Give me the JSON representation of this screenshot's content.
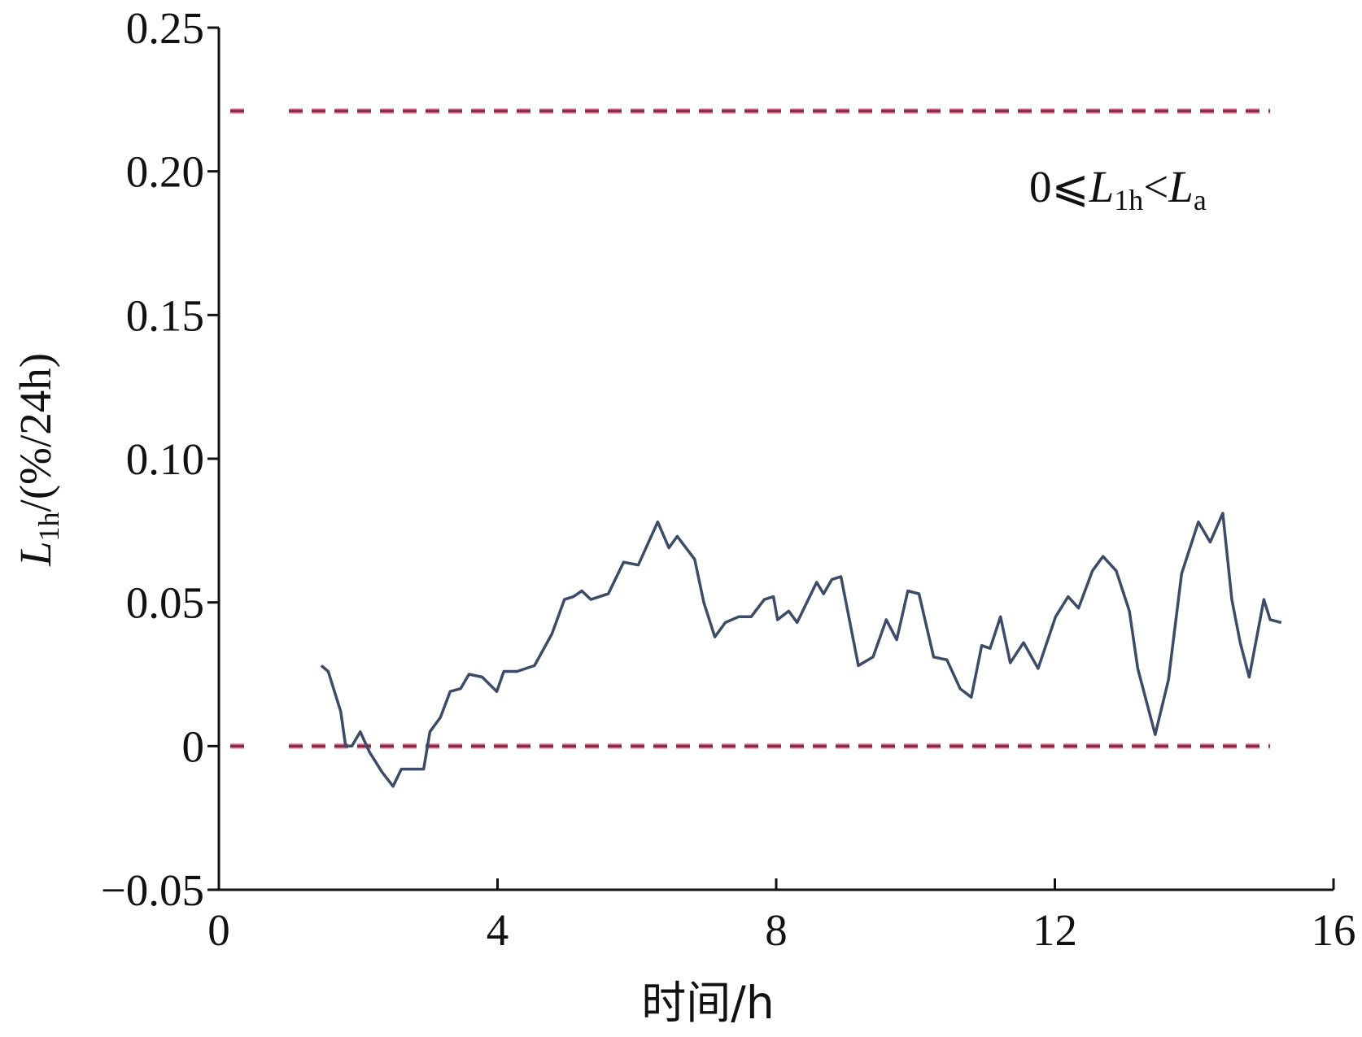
{
  "chart_data": {
    "type": "line",
    "annotation": {
      "parts": [
        "0⩽",
        "L",
        "1h",
        "<",
        "L",
        "a"
      ]
    },
    "xlabel": "时间/h",
    "ylabel": {
      "parts": [
        "L",
        "1h",
        "/(%/24h)"
      ]
    },
    "xlim": [
      0,
      16
    ],
    "xticks": [
      0,
      4,
      8,
      12,
      16
    ],
    "ylim": [
      -0.05,
      0.25
    ],
    "yticks": [
      {
        "value": -0.05,
        "label": "−0.05"
      },
      0,
      0.05,
      {
        "value": 0.1,
        "label": "0.10"
      },
      0.15,
      {
        "value": 0.2,
        "label": "0.20"
      },
      0.25
    ],
    "reference_lines": [
      {
        "y": 0.221,
        "color": "#d9436a"
      },
      {
        "y": 0,
        "color": "#d9436a"
      }
    ],
    "series": [
      {
        "color": "#3b4b68",
        "x": [
          1.47,
          1.57,
          1.75,
          1.82,
          1.91,
          2.03,
          2.16,
          2.34,
          2.5,
          2.62,
          2.78,
          2.94,
          3.03,
          3.18,
          3.32,
          3.47,
          3.59,
          3.78,
          3.99,
          4.09,
          4.28,
          4.53,
          4.78,
          4.96,
          5.09,
          5.21,
          5.34,
          5.59,
          5.81,
          6.02,
          6.3,
          6.46,
          6.58,
          6.83,
          6.96,
          7.12,
          7.27,
          7.46,
          7.64,
          7.83,
          7.96,
          8.02,
          8.18,
          8.3,
          8.58,
          8.68,
          8.8,
          8.93,
          9.18,
          9.39,
          9.58,
          9.73,
          9.89,
          10.05,
          10.26,
          10.45,
          10.64,
          10.8,
          10.95,
          11.07,
          11.22,
          11.36,
          11.55,
          11.76,
          12.01,
          12.19,
          12.34,
          12.54,
          12.69,
          12.88,
          13.07,
          13.19,
          13.44,
          13.63,
          13.82,
          14.06,
          14.23,
          14.41,
          14.54,
          14.66,
          14.79,
          15.0,
          15.09,
          15.25
        ],
        "values": [
          0.028,
          0.026,
          0.012,
          0.0,
          0.0,
          0.005,
          -0.002,
          -0.009,
          -0.014,
          -0.008,
          -0.008,
          -0.008,
          0.005,
          0.01,
          0.019,
          0.02,
          0.025,
          0.024,
          0.019,
          0.026,
          0.026,
          0.028,
          0.039,
          0.051,
          0.052,
          0.054,
          0.051,
          0.053,
          0.064,
          0.063,
          0.078,
          0.069,
          0.073,
          0.065,
          0.05,
          0.038,
          0.043,
          0.045,
          0.045,
          0.051,
          0.052,
          0.044,
          0.047,
          0.043,
          0.057,
          0.053,
          0.058,
          0.059,
          0.028,
          0.031,
          0.044,
          0.037,
          0.054,
          0.053,
          0.031,
          0.03,
          0.02,
          0.017,
          0.035,
          0.034,
          0.045,
          0.029,
          0.036,
          0.027,
          0.045,
          0.052,
          0.048,
          0.061,
          0.066,
          0.061,
          0.047,
          0.027,
          0.004,
          0.023,
          0.06,
          0.078,
          0.071,
          0.081,
          0.051,
          0.036,
          0.024,
          0.051,
          0.044,
          0.043
        ]
      }
    ]
  }
}
